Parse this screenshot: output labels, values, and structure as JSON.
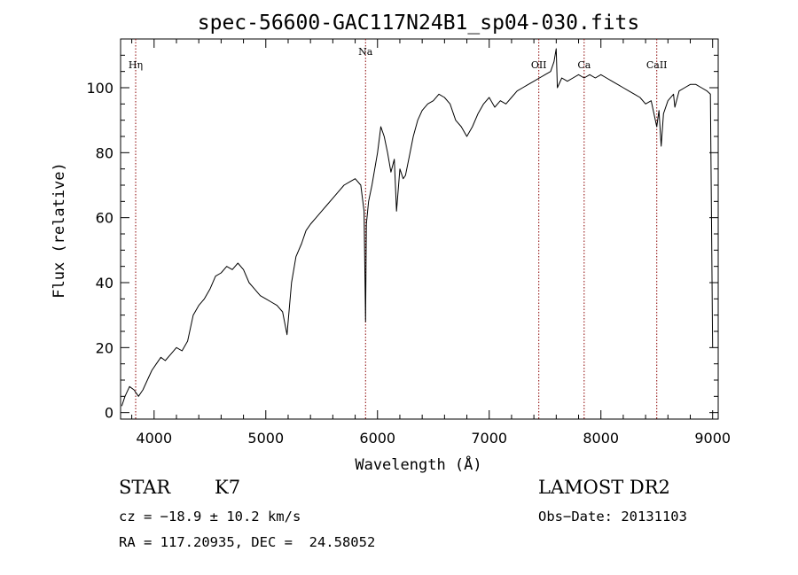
{
  "chart_data": {
    "type": "line",
    "title": "spec-56600-GAC117N24B1_sp04-030.fits",
    "xlabel": "Wavelength (Å)",
    "ylabel": "Flux (relative)",
    "xlim": [
      3700,
      9050
    ],
    "ylim": [
      -2,
      115
    ],
    "x_ticks": [
      4000,
      5000,
      6000,
      7000,
      8000,
      9000
    ],
    "y_ticks": [
      0,
      20,
      40,
      60,
      80,
      100
    ],
    "grid": false,
    "line_color": "#000000",
    "marker_color": "#8b0000",
    "spectral_lines": [
      {
        "label": "Hη",
        "wavelength": 3835
      },
      {
        "label": "Na",
        "wavelength": 5893
      },
      {
        "label": "OII",
        "wavelength": 7444
      },
      {
        "label": "Ca",
        "wavelength": 7850
      },
      {
        "label": "CaII",
        "wavelength": 8500
      }
    ],
    "series": [
      {
        "x": [
          3710,
          3740,
          3780,
          3820,
          3860,
          3900,
          3940,
          3980,
          4020,
          4060,
          4100,
          4150,
          4200,
          4250,
          4300,
          4350,
          4400,
          4450,
          4500,
          4550,
          4600,
          4650,
          4700,
          4750,
          4800,
          4850,
          4900,
          4950,
          5000,
          5050,
          5100,
          5150,
          5190,
          5230,
          5270,
          5320,
          5360,
          5400,
          5450,
          5500,
          5550,
          5600,
          5650,
          5700,
          5750,
          5800,
          5850,
          5880,
          5893,
          5900,
          5920,
          5950,
          6000,
          6030,
          6060,
          6090,
          6120,
          6150,
          6170,
          6200,
          6230,
          6250,
          6280,
          6320,
          6360,
          6400,
          6450,
          6500,
          6550,
          6600,
          6650,
          6700,
          6750,
          6800,
          6850,
          6900,
          6950,
          7000,
          7050,
          7100,
          7150,
          7200,
          7250,
          7300,
          7350,
          7400,
          7450,
          7500,
          7550,
          7580,
          7600,
          7610,
          7650,
          7700,
          7750,
          7800,
          7850,
          7900,
          7950,
          8000,
          8050,
          8100,
          8150,
          8200,
          8250,
          8300,
          8350,
          8400,
          8450,
          8500,
          8520,
          8540,
          8560,
          8600,
          8650,
          8662,
          8700,
          8750,
          8800,
          8850,
          8900,
          8950,
          8980,
          9000
        ],
        "values": [
          2,
          5,
          8,
          7,
          5,
          7,
          10,
          13,
          15,
          17,
          16,
          18,
          20,
          19,
          22,
          30,
          33,
          35,
          38,
          42,
          43,
          45,
          44,
          46,
          44,
          40,
          38,
          36,
          35,
          34,
          33,
          31,
          24,
          40,
          48,
          52,
          56,
          58,
          60,
          62,
          64,
          66,
          68,
          70,
          71,
          72,
          70,
          62,
          28,
          58,
          65,
          70,
          80,
          88,
          85,
          80,
          74,
          78,
          62,
          75,
          72,
          73,
          78,
          85,
          90,
          93,
          95,
          96,
          98,
          97,
          95,
          90,
          88,
          85,
          88,
          92,
          95,
          97,
          94,
          96,
          95,
          97,
          99,
          100,
          101,
          102,
          103,
          104,
          105,
          108,
          112,
          100,
          103,
          102,
          103,
          104,
          103,
          104,
          103,
          104,
          103,
          102,
          101,
          100,
          99,
          98,
          97,
          95,
          96,
          88,
          93,
          82,
          92,
          96,
          98,
          94,
          99,
          100,
          101,
          101,
          100,
          99,
          98,
          20
        ]
      }
    ]
  },
  "info": {
    "object_class": "STAR",
    "subclass": "K7",
    "cz": "cz = −18.9 ± 10.2 km/s",
    "coords": "RA = 117.20935, DEC =  24.58052",
    "survey": "LAMOST DR2",
    "obs_date": "Obs−Date: 20131103"
  }
}
